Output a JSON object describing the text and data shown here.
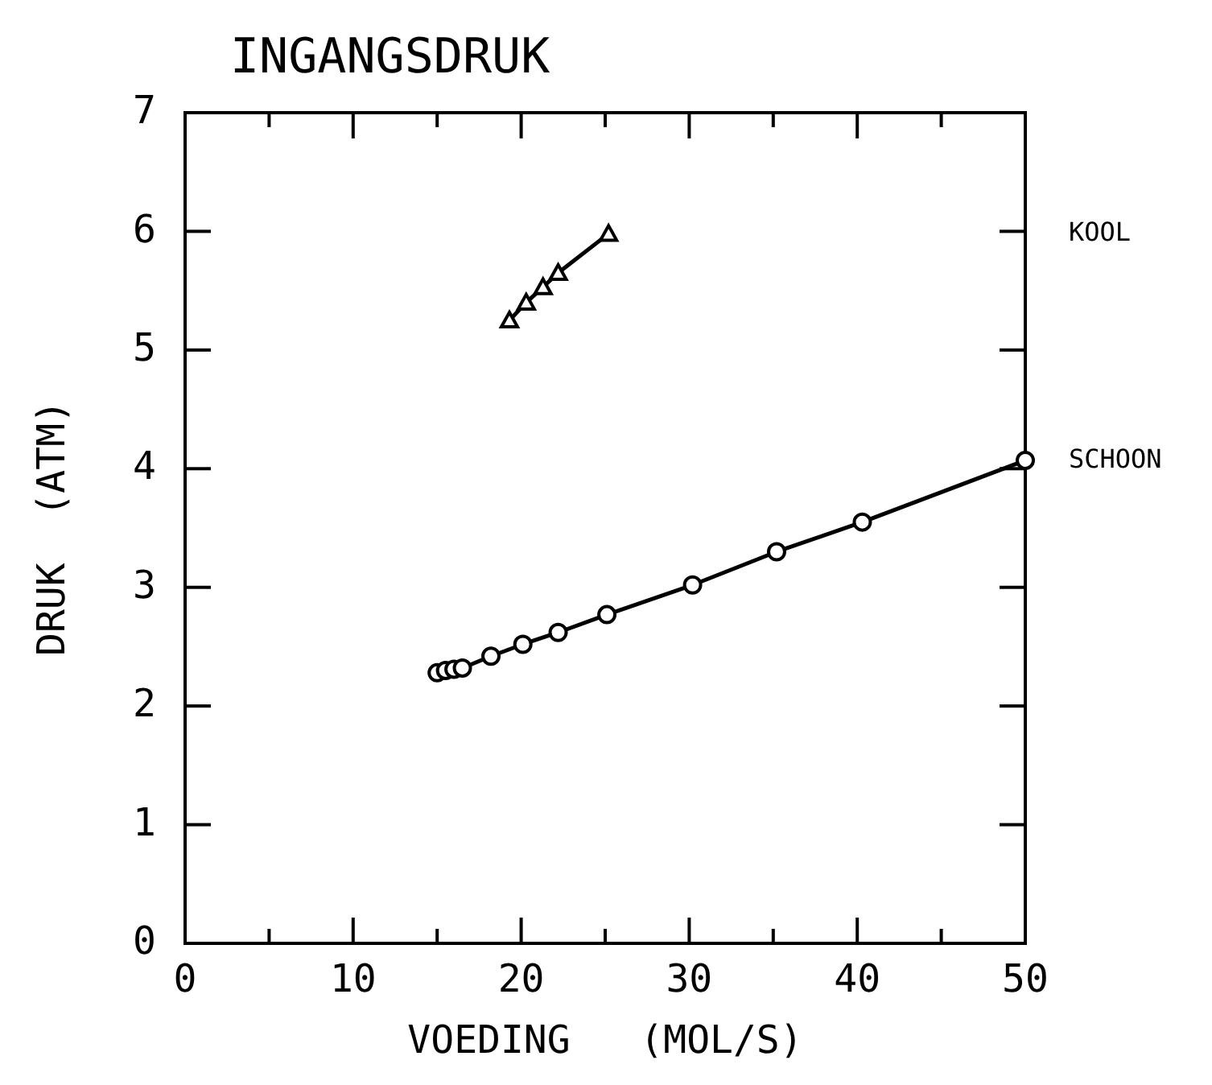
{
  "chart_data": {
    "type": "line",
    "title": "INGANGSDRUK",
    "xlabel": "VOEDING   (MOL/S)",
    "ylabel": "DRUK  (ATM)",
    "legend": "right",
    "xlim": [
      0,
      50
    ],
    "ylim": [
      0,
      7
    ],
    "xticks": [
      0,
      {
        "value": 5,
        "label": null
      },
      10,
      {
        "value": 15,
        "label": null
      },
      20,
      {
        "value": 25,
        "label": null
      },
      30,
      {
        "value": 35,
        "label": null
      },
      40,
      {
        "value": 45,
        "label": null
      },
      50
    ],
    "yticks": [
      0,
      1,
      2,
      3,
      4,
      5,
      6,
      7
    ],
    "series": [
      {
        "name": "KOOL",
        "color": "#000000",
        "marker": "triangle",
        "x": [
          19.3,
          20.3,
          21.3,
          22.2,
          25.2
        ],
        "values": [
          5.25,
          5.4,
          5.53,
          5.65,
          5.98
        ]
      },
      {
        "name": "SCHOON",
        "color": "#000000",
        "marker": "circle",
        "x": [
          15,
          15.5,
          16,
          16.5,
          18.2,
          20.1,
          22.2,
          25.1,
          30.2,
          35.2,
          40.3,
          50
        ],
        "values": [
          2.28,
          2.3,
          2.31,
          2.32,
          2.42,
          2.52,
          2.62,
          2.77,
          3.02,
          3.3,
          3.55,
          4.07
        ]
      }
    ]
  }
}
